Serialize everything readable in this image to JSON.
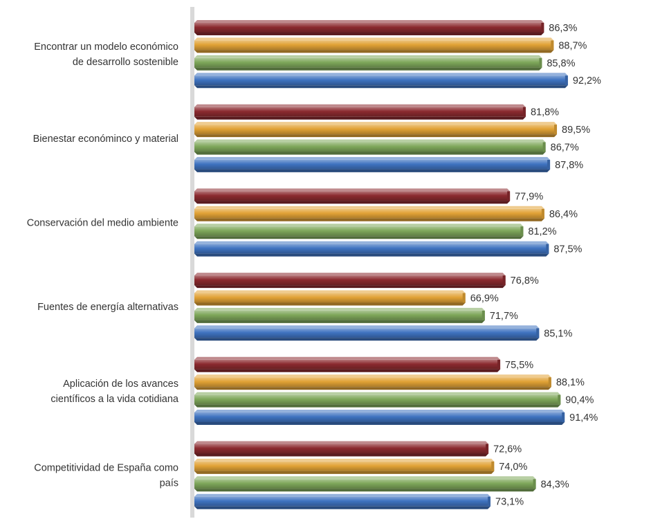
{
  "chart_data": {
    "type": "bar",
    "orientation": "horizontal",
    "categories": [
      [
        "Encontrar un modelo económico",
        "de desarrollo sostenible"
      ],
      [
        "Bienestar económinco y material"
      ],
      [
        "Conservación del medio ambiente"
      ],
      [
        "Fuentes de energía alternativas"
      ],
      [
        "Aplicación de los avances",
        "científicos a la vida cotidiana"
      ],
      [
        "Competitividad de España como",
        "país"
      ]
    ],
    "series": [
      {
        "color": "#8B2A2F",
        "values": [
          86.3,
          81.8,
          77.9,
          76.8,
          75.5,
          72.6
        ],
        "labels": [
          "86,3%",
          "81,8%",
          "77,9%",
          "76,8%",
          "75,5%",
          "72,6%"
        ]
      },
      {
        "color": "#E1A236",
        "values": [
          88.7,
          89.5,
          86.4,
          66.9,
          88.1,
          74.0
        ],
        "labels": [
          "88,7%",
          "89,5%",
          "86,4%",
          "66,9%",
          "88,1%",
          "74,0%"
        ]
      },
      {
        "color": "#7EA75A",
        "values": [
          85.8,
          86.7,
          81.2,
          71.7,
          90.4,
          84.3
        ],
        "labels": [
          "85,8%",
          "86,7%",
          "81,2%",
          "71,7%",
          "90,4%",
          "84,3%"
        ]
      },
      {
        "color": "#3F73C0",
        "values": [
          92.2,
          87.8,
          87.5,
          85.1,
          91.4,
          73.1
        ],
        "labels": [
          "92,2%",
          "87,8%",
          "87,5%",
          "85,1%",
          "91,4%",
          "73,1%"
        ]
      }
    ],
    "xlim": [
      0,
      100
    ],
    "value_labels": "outside-end",
    "grid": false,
    "legend": "none"
  }
}
